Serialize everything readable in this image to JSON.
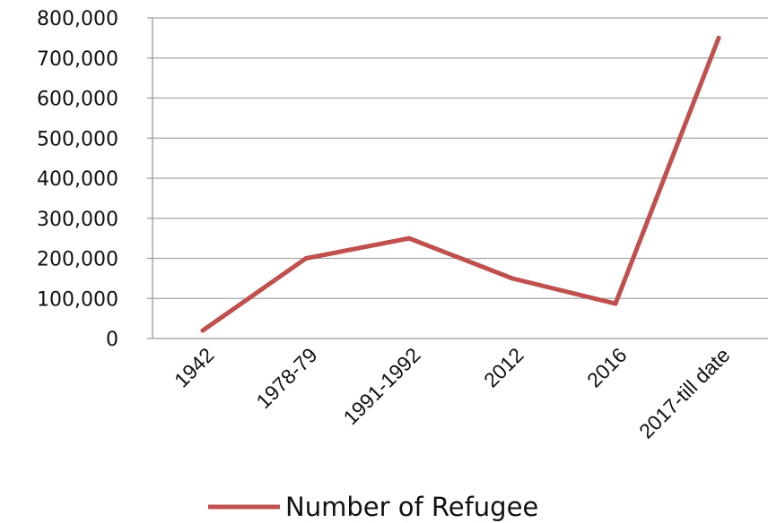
{
  "chart_data": {
    "type": "line",
    "categories": [
      "1942",
      "1978-79",
      "1991-1992",
      "2012",
      "2016",
      "2017-till date"
    ],
    "series": [
      {
        "name": "Number of Refugee",
        "values": [
          20000,
          200000,
          250000,
          150000,
          87000,
          750000
        ],
        "color": "#c0504d"
      }
    ],
    "y_ticks": [
      "0",
      "100,000",
      "200,000",
      "300,000",
      "400,000",
      "500,000",
      "600,000",
      "700,000",
      "800,000"
    ],
    "ylim": [
      0,
      800000
    ],
    "grid": "horizontal",
    "legend": "bottom",
    "title": "",
    "xlabel": "",
    "ylabel": ""
  }
}
